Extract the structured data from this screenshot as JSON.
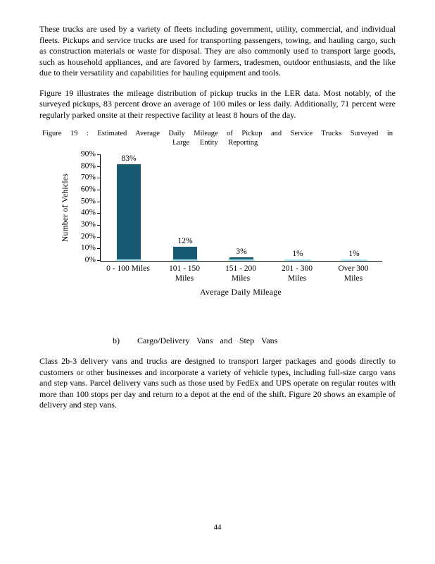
{
  "paragraphs": {
    "p1": "These trucks are used by a variety of fleets including government, utility, commercial, and individual fleets. Pickups and service trucks are used for transporting passengers, towing, and hauling cargo, such as construction materials or waste for disposal. They are also commonly used to transport large goods, such as household appliances, and are favored by farmers, tradesmen, outdoor enthusiasts, and the like due to their versatility and capabilities for hauling equipment and tools.",
    "p2": "Figure 19 illustrates the mileage distribution of pickup trucks in the LER data. Most notably, of the surveyed pickups, 83 percent drove an average of 100 miles or less daily. Additionally, 71 percent were regularly parked onsite at their respective facility at least 8 hours of the day.",
    "p3": "Class 2b-3 delivery vans and trucks are designed to transport larger packages and goods directly to customers or other businesses and incorporate a variety of vehicle types, including full-size cargo vans and step vans. Parcel delivery vans such as those used by FedEx and UPS operate on regular routes with more than 100 stops per day and return to a depot at the end of the shift. Figure 20 shows an example of delivery and step vans."
  },
  "figure_caption": {
    "line1": "Figure 19 : Estimated Average Daily Mileage of Pickup and Service Trucks Surveyed in",
    "line2": "Large Entity Reporting"
  },
  "section_heading": {
    "marker": "b)",
    "label": "Cargo/Delivery Vans and Step Vans"
  },
  "page_number": "44",
  "chart_data": {
    "type": "bar",
    "title": "Figure 19: Estimated Average Daily Mileage of Pickup and Service Trucks Surveyed in Large Entity Reporting",
    "categories": [
      "0 - 100 Miles",
      "101 - 150 Miles",
      "151 - 200 Miles",
      "201 - 300 Miles",
      "Over 300 Miles"
    ],
    "category_display": [
      "0 - 100 Miles",
      "101 - 150\nMiles",
      "151 - 200\nMiles",
      "201 - 300\nMiles",
      "Over 300\nMiles"
    ],
    "values": [
      83,
      12,
      3,
      1,
      1
    ],
    "value_labels": [
      "83%",
      "12%",
      "3%",
      "1%",
      "1%"
    ],
    "xlabel": "Average Daily Mileage",
    "ylabel": "Number of Vehicles",
    "ylim": [
      0,
      90
    ],
    "ytick_labels": [
      "90%",
      "80%",
      "70%",
      "60%",
      "50%",
      "40%",
      "30%",
      "20%",
      "10%",
      "0%"
    ],
    "bar_colors": [
      "#16586F",
      "#16586F",
      "#16586F",
      "#16586F",
      "#A9EAF4"
    ],
    "bar_base_color": "#A9EAF4",
    "grid": false,
    "legend": "none"
  }
}
